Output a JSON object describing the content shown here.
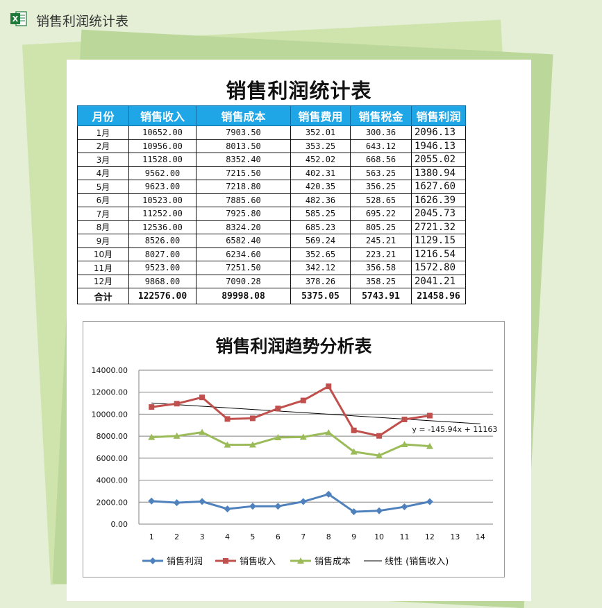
{
  "app": {
    "title": "销售利润统计表"
  },
  "document": {
    "title": "销售利润统计表",
    "headers": [
      "月份",
      "销售收入",
      "销售成本",
      "销售费用",
      "销售税金",
      "销售利润"
    ],
    "rows": [
      [
        "1月",
        "10652.00",
        "7903.50",
        "352.01",
        "300.36",
        "2096.13"
      ],
      [
        "2月",
        "10956.00",
        "8013.50",
        "353.25",
        "643.12",
        "1946.13"
      ],
      [
        "3月",
        "11528.00",
        "8352.40",
        "452.02",
        "668.56",
        "2055.02"
      ],
      [
        "4月",
        "9562.00",
        "7215.50",
        "402.31",
        "563.25",
        "1380.94"
      ],
      [
        "5月",
        "9623.00",
        "7218.80",
        "420.35",
        "356.25",
        "1627.60"
      ],
      [
        "6月",
        "10523.00",
        "7885.60",
        "482.36",
        "528.65",
        "1626.39"
      ],
      [
        "7月",
        "11252.00",
        "7925.80",
        "585.25",
        "695.22",
        "2045.73"
      ],
      [
        "8月",
        "12536.00",
        "8324.20",
        "685.23",
        "805.25",
        "2721.32"
      ],
      [
        "9月",
        "8526.00",
        "6582.40",
        "569.24",
        "245.21",
        "1129.15"
      ],
      [
        "10月",
        "8027.00",
        "6234.60",
        "352.65",
        "223.21",
        "1216.54"
      ],
      [
        "11月",
        "9523.00",
        "7251.50",
        "342.12",
        "356.58",
        "1572.80"
      ],
      [
        "12月",
        "9868.00",
        "7090.28",
        "378.26",
        "358.25",
        "2041.21"
      ]
    ],
    "total": [
      "合计",
      "122576.00",
      "89998.08",
      "5375.05",
      "5743.91",
      "21458.96"
    ]
  },
  "chart_data": {
    "type": "line",
    "title": "销售利润趋势分析表",
    "x": [
      1,
      2,
      3,
      4,
      5,
      6,
      7,
      8,
      9,
      10,
      11,
      12
    ],
    "x_ticks": [
      "1",
      "2",
      "3",
      "4",
      "5",
      "6",
      "7",
      "8",
      "9",
      "10",
      "11",
      "12",
      "13",
      "14"
    ],
    "xlim": [
      0.5,
      14.5
    ],
    "y_ticks": [
      "0.00",
      "2000.00",
      "4000.00",
      "6000.00",
      "8000.00",
      "10000.00",
      "12000.00",
      "14000.00"
    ],
    "ylim": [
      0,
      14000
    ],
    "grid": true,
    "legend_placement": "bottom",
    "series": [
      {
        "name": "销售利润",
        "color": "#4f81bd",
        "marker": "diamond",
        "values": [
          2096.13,
          1946.13,
          2055.02,
          1380.94,
          1627.6,
          1626.39,
          2045.73,
          2721.32,
          1129.15,
          1216.54,
          1572.8,
          2041.21
        ]
      },
      {
        "name": "销售收入",
        "color": "#c0504d",
        "marker": "square",
        "values": [
          10652,
          10956,
          11528,
          9562,
          9623,
          10523,
          11252,
          12536,
          8526,
          8027,
          9523,
          9868
        ]
      },
      {
        "name": "销售成本",
        "color": "#9bbb59",
        "marker": "triangle",
        "values": [
          7903.5,
          8013.5,
          8352.4,
          7215.5,
          7218.8,
          7885.6,
          7925.8,
          8324.2,
          6582.4,
          6234.6,
          7251.5,
          7090.28
        ]
      }
    ],
    "trendline": {
      "name": "线性 (销售收入)",
      "color": "#000000",
      "slope": -145.94,
      "intercept": 11163,
      "x_range": [
        1,
        14
      ],
      "equation": "y = -145.94x + 11163"
    }
  }
}
